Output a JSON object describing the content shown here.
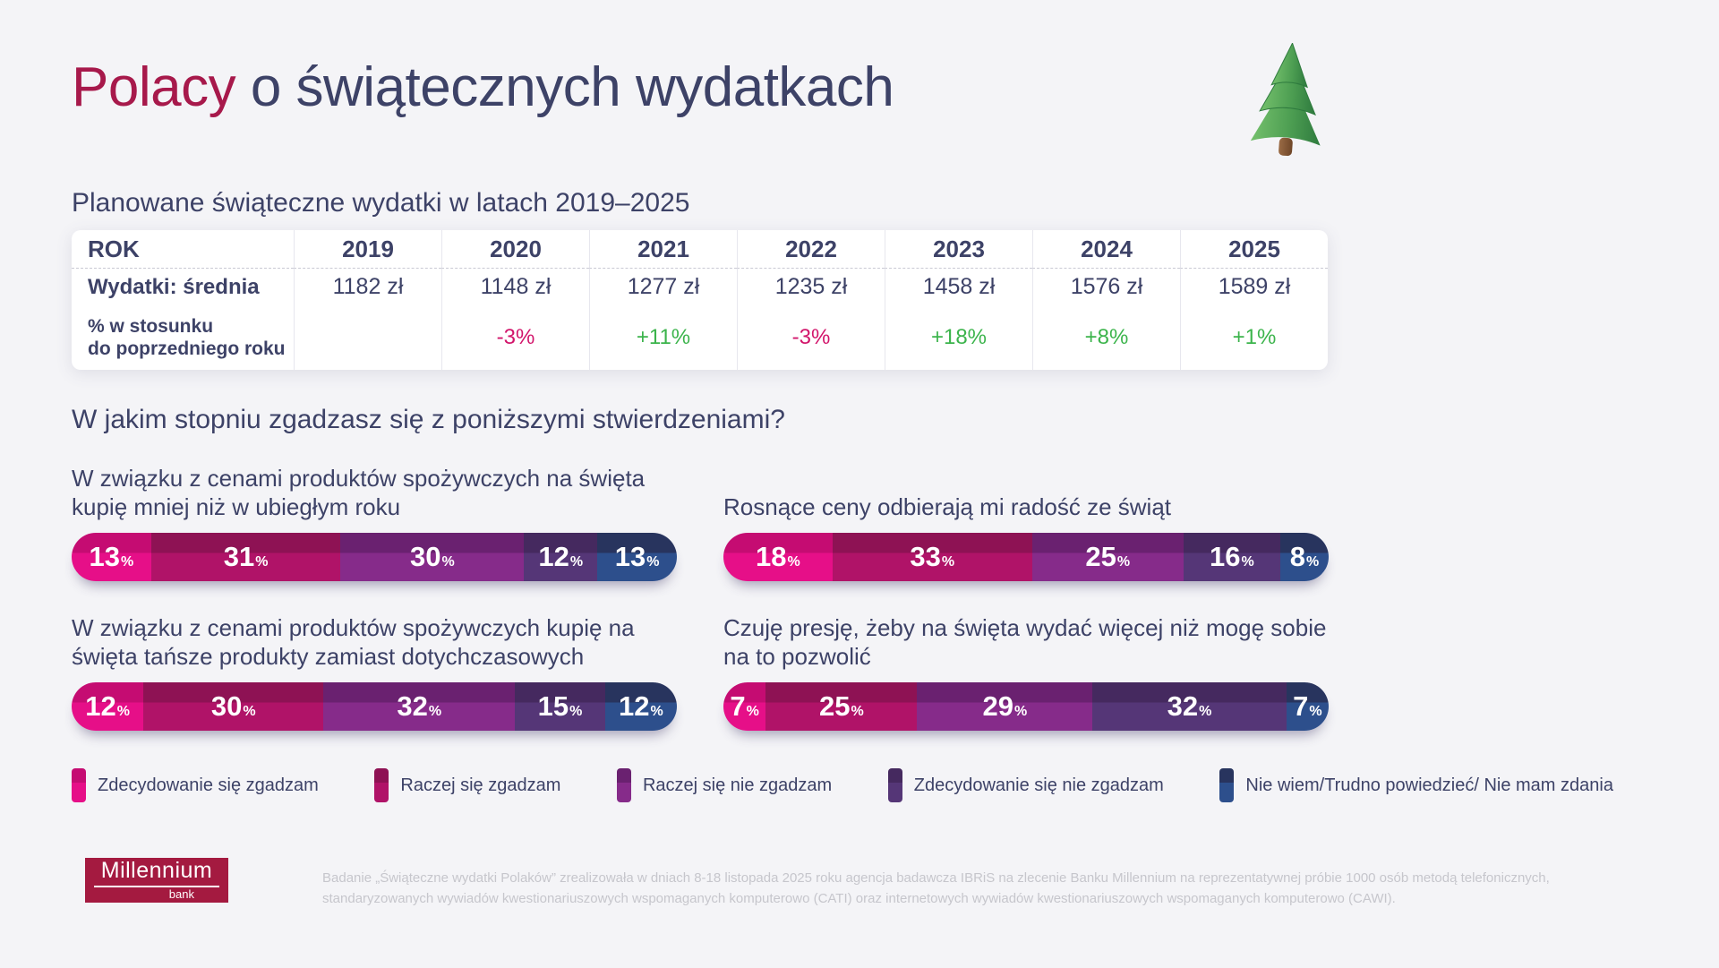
{
  "header": {
    "title_accent": "Polacy",
    "title_rest": " o świątecznych wydatkach"
  },
  "spending_table": {
    "title": "Planowane świąteczne wydatki w latach 2019–2025",
    "col0_header": "ROK",
    "years": [
      "2019",
      "2020",
      "2021",
      "2022",
      "2023",
      "2024",
      "2025"
    ],
    "avg_label": "Wydatki: średnia",
    "avg_values": [
      "1182 zł",
      "1148 zł",
      "1277 zł",
      "1235 zł",
      "1458 zł",
      "1576 zł",
      "1589 zł"
    ],
    "change_label_line1": "% w stosunku",
    "change_label_line2": "do poprzedniego roku",
    "change_values": [
      "",
      "-3%",
      "+11%",
      "-3%",
      "+18%",
      "+8%",
      "+1%"
    ]
  },
  "survey": {
    "question": "W jakim stopniu zgadzasz się z poniższymi stwierdzeniami?",
    "statements": [
      {
        "text": "W związku z cenami produktów spożywczych na święta kupię mniej niż w ubiegłym roku",
        "values": [
          13,
          31,
          30,
          12,
          13
        ]
      },
      {
        "text": "Rosnące ceny odbierają mi radość ze świąt",
        "values": [
          18,
          33,
          25,
          16,
          8
        ]
      },
      {
        "text": "W związku z cenami produktów spożywczych kupię na święta tańsze produkty zamiast dotychczasowych",
        "values": [
          12,
          30,
          32,
          15,
          12
        ]
      },
      {
        "text": "Czuję presję, żeby na święta wydać więcej niż mogę sobie na to pozwolić",
        "values": [
          7,
          25,
          29,
          32,
          7
        ]
      }
    ]
  },
  "legend": [
    {
      "label": "Zdecydowanie się zgadzam",
      "color_top": "#c50c72",
      "color_bottom": "#e60f88"
    },
    {
      "label": "Raczej się zgadzam",
      "color_top": "#8e1254",
      "color_bottom": "#b01368"
    },
    {
      "label": "Raczej się nie zgadzam",
      "color_top": "#6a2170",
      "color_bottom": "#862b8a"
    },
    {
      "label": "Zdecydowanie się nie zgadzam",
      "color_top": "#45295f",
      "color_bottom": "#553677"
    },
    {
      "label": "Nie wiem/Trudno powiedzieć/ Nie mam zdania",
      "color_top": "#28345e",
      "color_bottom": "#2d4f8c"
    }
  ],
  "footer": {
    "logo_name": "Millennium",
    "logo_bank": "bank",
    "note_line1": "Badanie „Świąteczne wydatki Polaków” zrealizowała w dniach 8-18 listopada 2025 roku agencja badawcza IBRiS na zlecenie Banku Millennium na reprezentatywnej próbie 1000 osób metodą telefonicznych,",
    "note_line2": "standaryzowanych wywiadów kwestionariuszowych wspomaganych komputerowo (CATI) oraz internetowych wywiadów kwestionariuszowych wspomaganych komputerowo (CAWI)."
  },
  "colors": {
    "accent_crimson": "#a7194b",
    "navy_text": "#3d4267",
    "positive_green": "#3cb44c",
    "negative_pink": "#d2156b",
    "logo_red": "#a41a40",
    "page_bg": "#f4f4f7"
  },
  "chart_data": [
    {
      "type": "table",
      "title": "Planowane świąteczne wydatki w latach 2019–2025",
      "columns": [
        "ROK",
        "2019",
        "2020",
        "2021",
        "2022",
        "2023",
        "2024",
        "2025"
      ],
      "rows": [
        [
          "Wydatki: średnia",
          "1182 zł",
          "1148 zł",
          "1277 zł",
          "1235 zł",
          "1458 zł",
          "1576 zł",
          "1589 zł"
        ],
        [
          "% w stosunku do poprzedniego roku",
          "",
          "-3%",
          "+11%",
          "-3%",
          "+18%",
          "+8%",
          "+1%"
        ]
      ]
    },
    {
      "type": "bar",
      "subtype": "horizontal-stacked",
      "unit": "%",
      "title": "W związku z cenami produktów spożywczych na święta kupię mniej niż w ubiegłym roku",
      "categories": [
        "Zdecydowanie się zgadzam",
        "Raczej się zgadzam",
        "Raczej się nie zgadzam",
        "Zdecydowanie się nie zgadzam",
        "Nie wiem/Trudno powiedzieć/ Nie mam zdania"
      ],
      "values": [
        13,
        31,
        30,
        12,
        13
      ]
    },
    {
      "type": "bar",
      "subtype": "horizontal-stacked",
      "unit": "%",
      "title": "Rosnące ceny odbierają mi radość ze świąt",
      "categories": [
        "Zdecydowanie się zgadzam",
        "Raczej się zgadzam",
        "Raczej się nie zgadzam",
        "Zdecydowanie się nie zgadzam",
        "Nie wiem/Trudno powiedzieć/ Nie mam zdania"
      ],
      "values": [
        18,
        33,
        25,
        16,
        8
      ]
    },
    {
      "type": "bar",
      "subtype": "horizontal-stacked",
      "unit": "%",
      "title": "W związku z cenami produktów spożywczych kupię na święta tańsze produkty zamiast dotychczasowych",
      "categories": [
        "Zdecydowanie się zgadzam",
        "Raczej się zgadzam",
        "Raczej się nie zgadzam",
        "Zdecydowanie się nie zgadzam",
        "Nie wiem/Trudno powiedzieć/ Nie mam zdania"
      ],
      "values": [
        12,
        30,
        32,
        15,
        12
      ]
    },
    {
      "type": "bar",
      "subtype": "horizontal-stacked",
      "unit": "%",
      "title": "Czuję presję, żeby na święta wydać więcej niż mogę sobie na to pozwolić",
      "categories": [
        "Zdecydowanie się zgadzam",
        "Raczej się zgadzam",
        "Raczej się nie zgadzam",
        "Zdecydowanie się nie zgadzam",
        "Nie wiem/Trudno powiedzieć/ Nie mam zdania"
      ],
      "values": [
        7,
        25,
        29,
        32,
        7
      ]
    }
  ]
}
